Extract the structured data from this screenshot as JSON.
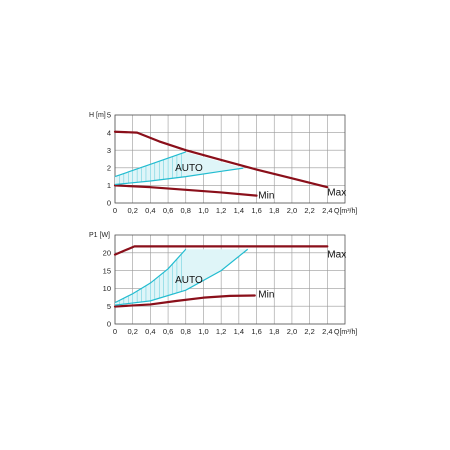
{
  "colors": {
    "max_min_curve": "#8a0f1a",
    "auto_band": "#22bcd0",
    "grid": "#9a9a9a"
  },
  "chart_data": [
    {
      "type": "line",
      "ylabel": "H [m]",
      "xlabel": "Q[m³/h]",
      "xlim": [
        0,
        2.6
      ],
      "ylim": [
        0,
        5
      ],
      "grid": true,
      "x_ticks": [
        "0",
        "0,2",
        "0,4",
        "0,6",
        "0,8",
        "1,0",
        "1,2",
        "1,4",
        "1,6",
        "1,8",
        "2,0",
        "2,2",
        "2,4"
      ],
      "y_ticks": [
        "0",
        "1",
        "2",
        "3",
        "4",
        "5"
      ],
      "series": [
        {
          "name": "Max",
          "x": [
            0,
            0.25,
            0.5,
            0.8,
            1.2,
            1.6,
            2.0,
            2.4
          ],
          "y": [
            4.05,
            4.0,
            3.5,
            3.0,
            2.45,
            1.9,
            1.4,
            0.9
          ]
        },
        {
          "name": "Min",
          "x": [
            0,
            0.4,
            0.8,
            1.2,
            1.6
          ],
          "y": [
            1.0,
            0.9,
            0.75,
            0.6,
            0.42
          ]
        },
        {
          "name": "AUTO-upper",
          "x": [
            0,
            0.4,
            0.8
          ],
          "y": [
            1.5,
            2.2,
            2.9
          ]
        },
        {
          "name": "AUTO-lower",
          "x": [
            0,
            0.4,
            0.8,
            1.2,
            1.45
          ],
          "y": [
            1.05,
            1.25,
            1.5,
            1.8,
            1.98
          ]
        }
      ],
      "annotations": [
        {
          "text": "AUTO",
          "x": 0.68,
          "y": 2.0
        },
        {
          "text": "Min",
          "x": 1.62,
          "y": 0.42
        },
        {
          "text": "Max",
          "x": 2.4,
          "y": 0.6
        }
      ]
    },
    {
      "type": "line",
      "ylabel": "P1 [W]",
      "xlabel": "Q[m³/h]",
      "xlim": [
        0,
        2.6
      ],
      "ylim": [
        0,
        25
      ],
      "grid": true,
      "x_ticks": [
        "0",
        "0,2",
        "0,4",
        "0,6",
        "0,8",
        "1,0",
        "1,2",
        "1,4",
        "1,6",
        "1,8",
        "2,0",
        "2,2",
        "2,4"
      ],
      "y_ticks": [
        "0",
        "5",
        "10",
        "15",
        "20"
      ],
      "series": [
        {
          "name": "Max",
          "x": [
            0,
            0.22,
            0.4,
            0.8,
            1.2,
            1.6,
            2.0,
            2.4
          ],
          "y": [
            19.5,
            21.8,
            21.8,
            21.8,
            21.8,
            21.8,
            21.8,
            21.8
          ]
        },
        {
          "name": "Min",
          "x": [
            0,
            0.4,
            0.7,
            1.0,
            1.3,
            1.58
          ],
          "y": [
            4.9,
            5.5,
            6.5,
            7.4,
            7.9,
            8.0
          ]
        },
        {
          "name": "AUTO-upper",
          "x": [
            0,
            0.2,
            0.4,
            0.6,
            0.8
          ],
          "y": [
            6.0,
            8.5,
            11.5,
            15.5,
            21.0
          ]
        },
        {
          "name": "AUTO-lower",
          "x": [
            0,
            0.4,
            0.8,
            1.2,
            1.5
          ],
          "y": [
            5.3,
            6.5,
            9.5,
            15.0,
            21.0
          ]
        }
      ],
      "annotations": [
        {
          "text": "AUTO",
          "x": 0.68,
          "y": 12.3
        },
        {
          "text": "Min",
          "x": 1.62,
          "y": 8.3
        },
        {
          "text": "Max",
          "x": 2.4,
          "y": 19.5
        }
      ]
    }
  ]
}
